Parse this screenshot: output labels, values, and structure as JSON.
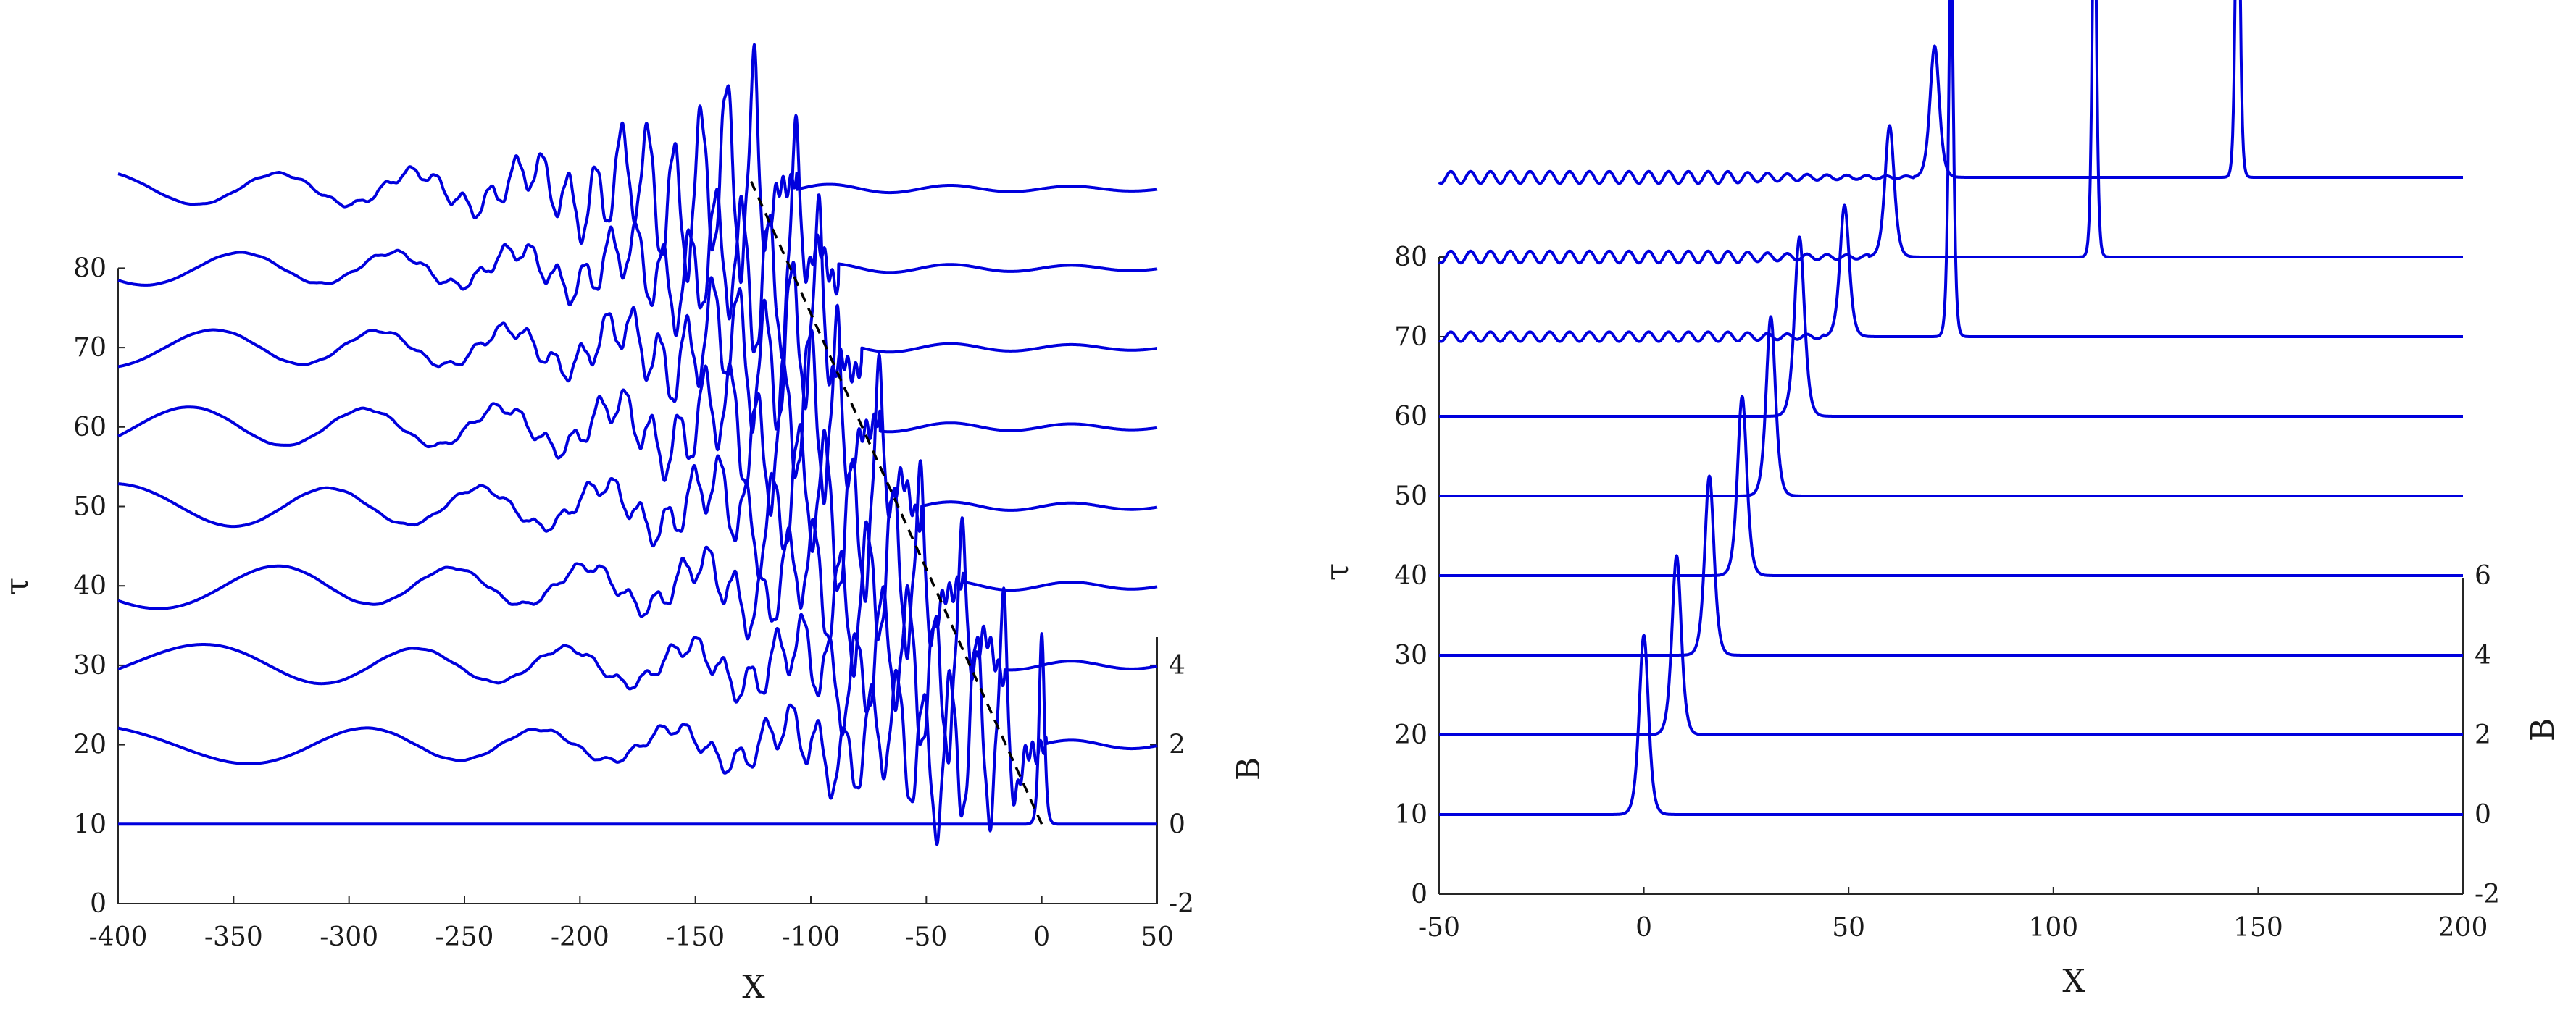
{
  "chart_data": [
    {
      "type": "line",
      "panel": "left",
      "xlabel": "X",
      "ylabel": "τ",
      "y2label": "B",
      "xlim": [
        -400,
        50
      ],
      "x_ticks": [
        "-400",
        "-350",
        "-300",
        "-250",
        "-200",
        "-150",
        "-100",
        "-50",
        "0",
        "50"
      ],
      "y_ticks": [
        "0",
        "10",
        "20",
        "30",
        "40",
        "50",
        "60",
        "70",
        "80"
      ],
      "y2_ticks": [
        "-2",
        "0",
        "2",
        "4"
      ],
      "tau_per_B": 5,
      "series": [
        {
          "tau": 10,
          "profile": "soliton",
          "peak_x": 0,
          "amp": 4.8,
          "width": 1.5
        },
        {
          "tau": 20,
          "profile": "radiating",
          "front_x": -18,
          "peak_amp": 4.3,
          "tail_amp": 0.55
        },
        {
          "tau": 30,
          "profile": "radiating",
          "front_x": -36,
          "peak_amp": 3.6,
          "tail_amp": 0.6
        },
        {
          "tau": 40,
          "profile": "radiating",
          "front_x": -54,
          "peak_amp": 3.6,
          "tail_amp": 0.65
        },
        {
          "tau": 50,
          "profile": "radiating",
          "front_x": -72,
          "peak_amp": 3.6,
          "tail_amp": 0.65
        },
        {
          "tau": 60,
          "profile": "radiating",
          "front_x": -90,
          "peak_amp": 3.6,
          "tail_amp": 0.65
        },
        {
          "tau": 70,
          "profile": "radiating",
          "front_x": -98,
          "peak_amp": 3.6,
          "tail_amp": 0.6
        },
        {
          "tau": 80,
          "profile": "radiating",
          "front_x": -108,
          "peak_amp": 3.6,
          "tail_amp": 0.55
        },
        {
          "tau": 90,
          "profile": "radiating",
          "front_x": -126,
          "peak_amp": 4.2,
          "tail_amp": 0.55
        }
      ],
      "dashed_line": {
        "from": {
          "x": 0,
          "tau": 10
        },
        "to": {
          "x": -126,
          "tau": 91
        }
      }
    },
    {
      "type": "line",
      "panel": "right",
      "xlabel": "X",
      "ylabel": "τ",
      "y2label": "B",
      "xlim": [
        -50,
        200
      ],
      "x_ticks": [
        "-50",
        "0",
        "50",
        "100",
        "150",
        "200"
      ],
      "y_ticks": [
        "0",
        "10",
        "20",
        "30",
        "40",
        "50",
        "60",
        "70",
        "80"
      ],
      "y2_ticks": [
        "-2",
        "0",
        "2",
        "4",
        "6"
      ],
      "tau_per_B": 5,
      "series": [
        {
          "tau": 10,
          "pulses": [
            {
              "x": 0,
              "amp": 4.5,
              "width": 1.5
            }
          ]
        },
        {
          "tau": 20,
          "pulses": [
            {
              "x": 8,
              "amp": 4.5,
              "width": 1.5
            }
          ]
        },
        {
          "tau": 30,
          "pulses": [
            {
              "x": 16,
              "amp": 4.5,
              "width": 1.5
            }
          ]
        },
        {
          "tau": 40,
          "pulses": [
            {
              "x": 24,
              "amp": 4.5,
              "width": 1.5
            }
          ]
        },
        {
          "tau": 50,
          "pulses": [
            {
              "x": 31,
              "amp": 4.5,
              "width": 1.5
            }
          ]
        },
        {
          "tau": 60,
          "pulses": [
            {
              "x": 38,
              "amp": 4.5,
              "width": 1.6
            }
          ]
        },
        {
          "tau": 70,
          "pulses": [
            {
              "x": 49,
              "amp": 3.3,
              "width": 1.5
            },
            {
              "x": 75,
              "amp": 9.4,
              "width": 0.8
            }
          ],
          "ripple": 0.12
        },
        {
          "tau": 80,
          "pulses": [
            {
              "x": 60,
              "amp": 3.3,
              "width": 1.5
            },
            {
              "x": 110,
              "amp": 9.8,
              "width": 0.7
            }
          ],
          "ripple": 0.15
        },
        {
          "tau": 90,
          "pulses": [
            {
              "x": 71,
              "amp": 3.3,
              "width": 1.5
            },
            {
              "x": 145,
              "amp": 9.9,
              "width": 0.7
            }
          ],
          "ripple": 0.15
        }
      ]
    }
  ]
}
